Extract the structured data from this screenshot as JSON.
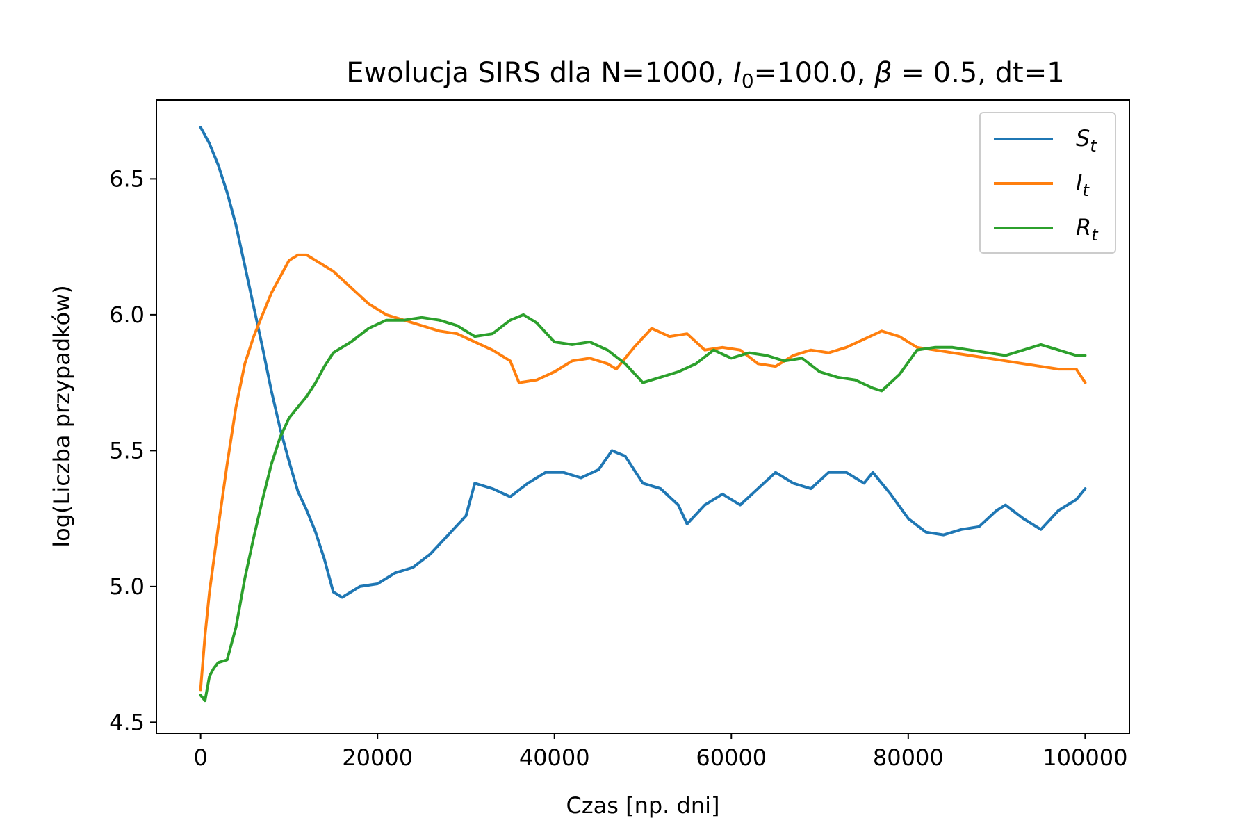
{
  "chart_data": {
    "type": "line",
    "title": {
      "prefix": "Ewolucja SIRS dla N=1000, ",
      "i0_symbol": "I",
      "i0_subscript": "0",
      "i0_value": "=100.0, ",
      "beta_symbol": "β",
      "beta_value": " = 0.5, dt=1"
    },
    "xlabel": "Czas [np. dni]",
    "ylabel": "log(Liczba przypadków)",
    "xlim": [
      -5000,
      105000
    ],
    "ylim": [
      4.46,
      6.79
    ],
    "x_ticks": [
      0,
      20000,
      40000,
      60000,
      80000,
      100000
    ],
    "x_tick_labels": [
      "0",
      "20000",
      "40000",
      "60000",
      "80000",
      "100000"
    ],
    "y_ticks": [
      4.5,
      5.0,
      5.5,
      6.0,
      6.5
    ],
    "y_tick_labels": [
      "4.5",
      "5.0",
      "5.5",
      "6.0",
      "6.5"
    ],
    "grid": false,
    "legend_position": "top-right",
    "series": [
      {
        "name": "S",
        "subscript": "t",
        "color": "#1f77b4",
        "x": [
          0,
          1000,
          2000,
          3000,
          4000,
          5000,
          6000,
          7000,
          8000,
          9000,
          10000,
          11000,
          12000,
          13000,
          14000,
          15000,
          16000,
          18000,
          20000,
          22000,
          24000,
          26000,
          28000,
          30000,
          31000,
          33000,
          35000,
          37000,
          39000,
          41000,
          43000,
          45000,
          46500,
          48000,
          50000,
          52000,
          54000,
          55000,
          57000,
          59000,
          61000,
          63000,
          65000,
          67000,
          69000,
          71000,
          73000,
          75000,
          76000,
          78000,
          80000,
          82000,
          84000,
          86000,
          88000,
          90000,
          91000,
          93000,
          95000,
          97000,
          99000,
          100000
        ],
        "y": [
          6.69,
          6.63,
          6.55,
          6.45,
          6.33,
          6.18,
          6.03,
          5.88,
          5.72,
          5.58,
          5.46,
          5.35,
          5.28,
          5.2,
          5.1,
          4.98,
          4.96,
          5.0,
          5.01,
          5.05,
          5.07,
          5.12,
          5.19,
          5.26,
          5.38,
          5.36,
          5.33,
          5.38,
          5.42,
          5.42,
          5.4,
          5.43,
          5.5,
          5.48,
          5.38,
          5.36,
          5.3,
          5.23,
          5.3,
          5.34,
          5.3,
          5.36,
          5.42,
          5.38,
          5.36,
          5.42,
          5.42,
          5.38,
          5.42,
          5.34,
          5.25,
          5.2,
          5.19,
          5.21,
          5.22,
          5.28,
          5.3,
          5.25,
          5.21,
          5.28,
          5.32,
          5.36
        ]
      },
      {
        "name": "I",
        "subscript": "t",
        "color": "#ff7f0e",
        "x": [
          0,
          500,
          1000,
          2000,
          3000,
          4000,
          5000,
          6000,
          7000,
          8000,
          9000,
          10000,
          11000,
          12000,
          13000,
          15000,
          17000,
          19000,
          21000,
          23000,
          25000,
          27000,
          29000,
          31000,
          33000,
          35000,
          36000,
          38000,
          40000,
          42000,
          44000,
          46000,
          47000,
          49000,
          51000,
          53000,
          55000,
          57000,
          59000,
          61000,
          63000,
          65000,
          67000,
          69000,
          71000,
          73000,
          75000,
          77000,
          79000,
          81000,
          83000,
          85000,
          87000,
          89000,
          91000,
          93000,
          95000,
          97000,
          99000,
          100000
        ],
        "y": [
          4.62,
          4.82,
          4.98,
          5.22,
          5.45,
          5.66,
          5.82,
          5.92,
          6.0,
          6.08,
          6.14,
          6.2,
          6.22,
          6.22,
          6.2,
          6.16,
          6.1,
          6.04,
          6.0,
          5.98,
          5.96,
          5.94,
          5.93,
          5.9,
          5.87,
          5.83,
          5.75,
          5.76,
          5.79,
          5.83,
          5.84,
          5.82,
          5.8,
          5.88,
          5.95,
          5.92,
          5.93,
          5.87,
          5.88,
          5.87,
          5.82,
          5.81,
          5.85,
          5.87,
          5.86,
          5.88,
          5.91,
          5.94,
          5.92,
          5.88,
          5.87,
          5.86,
          5.85,
          5.84,
          5.83,
          5.82,
          5.81,
          5.8,
          5.8,
          5.75
        ]
      },
      {
        "name": "R",
        "subscript": "t",
        "color": "#2ca02c",
        "x": [
          0,
          500,
          1000,
          1500,
          2000,
          3000,
          4000,
          5000,
          6000,
          7000,
          8000,
          9000,
          10000,
          11000,
          12000,
          13000,
          14000,
          15000,
          17000,
          19000,
          21000,
          23000,
          25000,
          27000,
          29000,
          31000,
          33000,
          35000,
          36500,
          38000,
          40000,
          42000,
          44000,
          46000,
          48000,
          50000,
          52000,
          54000,
          56000,
          58000,
          60000,
          62000,
          64000,
          66000,
          68000,
          70000,
          72000,
          74000,
          76000,
          77000,
          79000,
          81000,
          83000,
          85000,
          87000,
          89000,
          91000,
          93000,
          95000,
          97000,
          99000,
          100000
        ],
        "y": [
          4.6,
          4.58,
          4.67,
          4.7,
          4.72,
          4.73,
          4.85,
          5.03,
          5.18,
          5.32,
          5.45,
          5.55,
          5.62,
          5.66,
          5.7,
          5.75,
          5.81,
          5.86,
          5.9,
          5.95,
          5.98,
          5.98,
          5.99,
          5.98,
          5.96,
          5.92,
          5.93,
          5.98,
          6.0,
          5.97,
          5.9,
          5.89,
          5.9,
          5.87,
          5.82,
          5.75,
          5.77,
          5.79,
          5.82,
          5.87,
          5.84,
          5.86,
          5.85,
          5.83,
          5.84,
          5.79,
          5.77,
          5.76,
          5.73,
          5.72,
          5.78,
          5.87,
          5.88,
          5.88,
          5.87,
          5.86,
          5.85,
          5.87,
          5.89,
          5.87,
          5.85,
          5.85
        ]
      }
    ]
  }
}
